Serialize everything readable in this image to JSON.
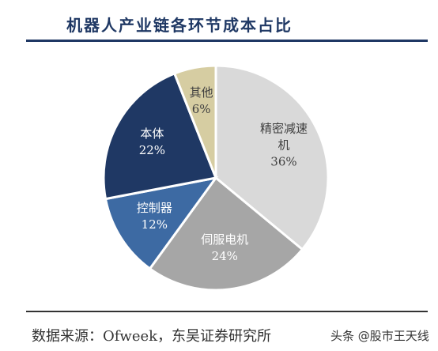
{
  "chart_data": {
    "type": "pie",
    "title": "机器人产业链各环节成本占比",
    "start_angle_deg": 0,
    "direction": "clockwise",
    "slices": [
      {
        "label_lines": [
          "精密减速",
          "机"
        ],
        "value_text": "36%",
        "value": 36,
        "color": "#d9d9d9",
        "text_color": "#404040"
      },
      {
        "label_lines": [
          "伺服电机"
        ],
        "value_text": "24%",
        "value": 24,
        "color": "#a6a6a6",
        "text_color": "#ffffff"
      },
      {
        "label_lines": [
          "控制器"
        ],
        "value_text": "12%",
        "value": 12,
        "color": "#3d6aa3",
        "text_color": "#ffffff"
      },
      {
        "label_lines": [
          "本体"
        ],
        "value_text": "22%",
        "value": 22,
        "color": "#1f3864",
        "text_color": "#ffffff"
      },
      {
        "label_lines": [
          "其他"
        ],
        "value_text": "6%",
        "value": 6,
        "color": "#d6cda2",
        "text_color": "#404040"
      }
    ]
  },
  "source": "数据来源：Ofweek，东吴证券研究所",
  "watermark": "头条 @股市王天线"
}
